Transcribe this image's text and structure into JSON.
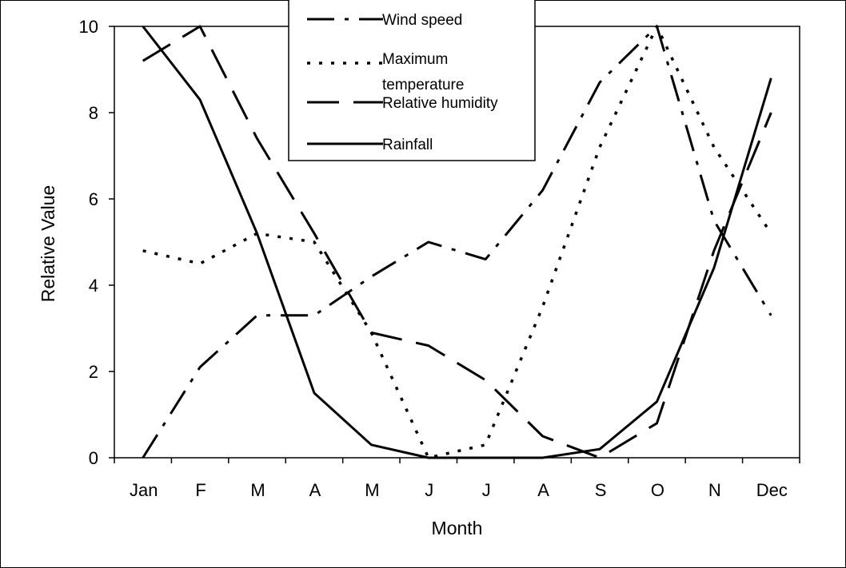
{
  "chart_data": {
    "type": "line",
    "xlabel": "Month",
    "ylabel": "Relative Value",
    "ylim": [
      0,
      10
    ],
    "yticks": [
      0,
      2,
      4,
      6,
      8,
      10
    ],
    "categories": [
      "Jan",
      "F",
      "M",
      "A",
      "M",
      "J",
      "J",
      "A",
      "S",
      "O",
      "N",
      "Dec"
    ],
    "grid": false,
    "legend_position": "top-center",
    "series": [
      {
        "name": "Wind speed",
        "style": "dash-dot",
        "values": [
          0.0,
          2.1,
          3.3,
          3.3,
          4.2,
          5.0,
          4.6,
          6.2,
          8.7,
          10.0,
          5.5,
          3.3
        ]
      },
      {
        "name": "Maximum temperature",
        "style": "dot",
        "values": [
          4.8,
          4.5,
          5.2,
          5.0,
          2.9,
          0.0,
          0.3,
          3.5,
          7.2,
          10.0,
          7.2,
          5.2
        ]
      },
      {
        "name": "Relative humidity",
        "style": "long-dash",
        "values": [
          9.2,
          10.0,
          7.4,
          5.2,
          2.9,
          2.6,
          1.8,
          0.5,
          0.0,
          0.8,
          4.8,
          8.0
        ]
      },
      {
        "name": "Rainfall",
        "style": "solid",
        "values": [
          10.0,
          8.3,
          5.2,
          1.5,
          0.3,
          0.0,
          0.0,
          0.0,
          0.2,
          1.3,
          4.4,
          8.8
        ]
      }
    ]
  }
}
